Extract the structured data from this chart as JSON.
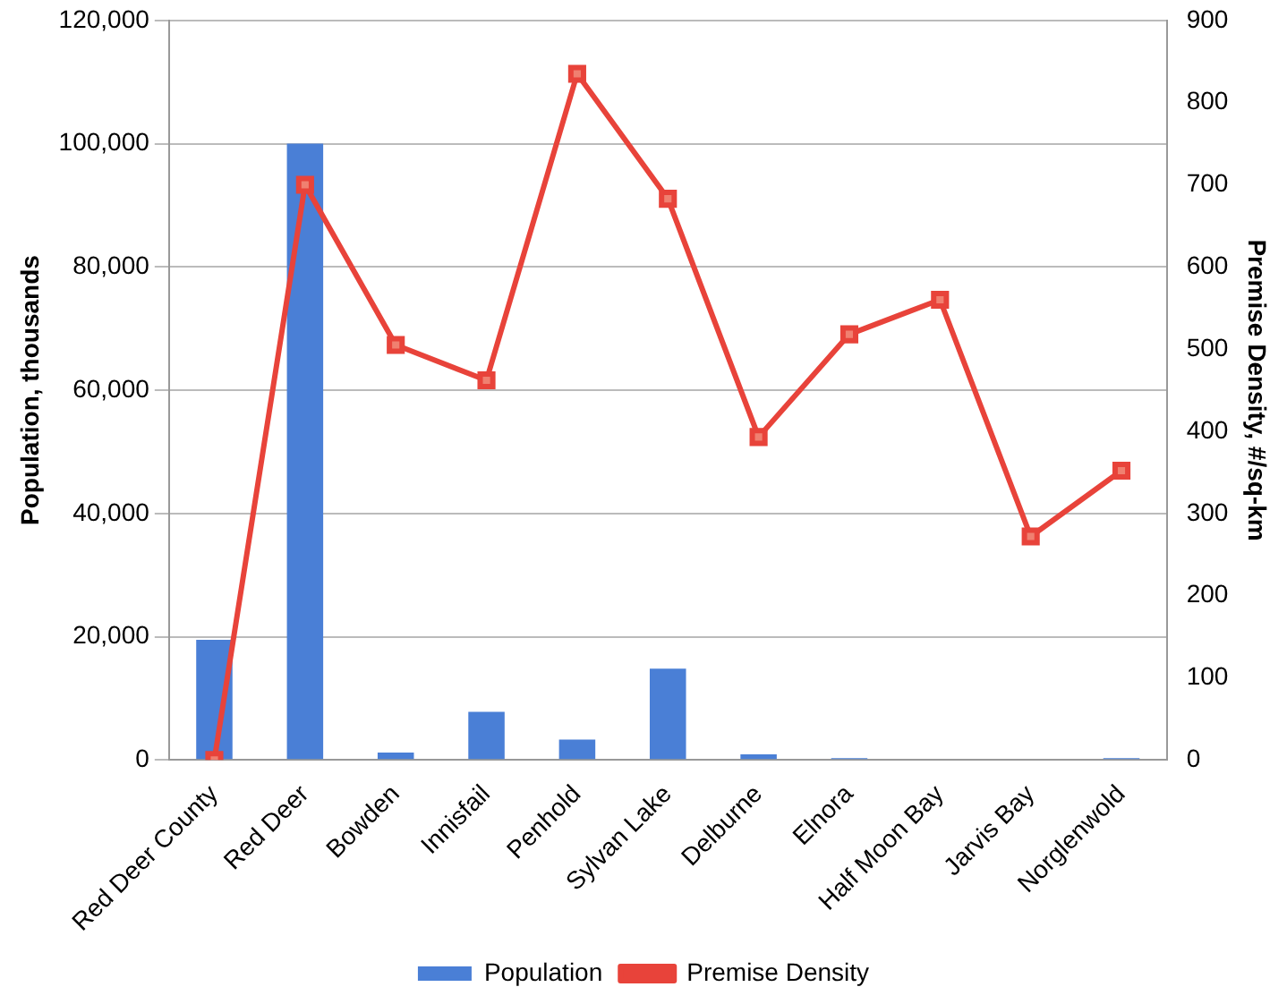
{
  "chart_data": {
    "type": "bar",
    "categories": [
      "Red Deer County",
      "Red Deer",
      "Bowden",
      "Innisfail",
      "Penhold",
      "Sylvan Lake",
      "Delburne",
      "Elnora",
      "Half Moon Bay",
      "Jarvis Bay",
      "Norglenwold"
    ],
    "series": [
      {
        "name": "Population",
        "color": "#4a7fd6",
        "values": [
          19500,
          100000,
          1200,
          7800,
          3300,
          14800,
          900,
          300,
          null,
          null,
          300
        ]
      },
      {
        "name": "Premise Density",
        "type": "line",
        "axis": "y2",
        "color": "#e8433a",
        "marker": "square",
        "values": [
          0,
          700,
          505,
          462,
          835,
          683,
          393,
          518,
          560,
          272,
          352
        ]
      }
    ],
    "ylabel": "Population, thousands",
    "y2label": "Premise Density, #/sq-km",
    "ylim": [
      0,
      120000
    ],
    "yticks": [
      {
        "value": 0,
        "label": "0"
      },
      {
        "value": 20000,
        "label": "20,000"
      },
      {
        "value": 40000,
        "label": "40,000"
      },
      {
        "value": 60000,
        "label": "60,000"
      },
      {
        "value": 80000,
        "label": "80,000"
      },
      {
        "value": 100000,
        "label": "100,000"
      },
      {
        "value": 120000,
        "label": "120,000"
      }
    ],
    "y2lim": [
      0,
      900
    ],
    "y2ticks": [
      0,
      100,
      200,
      300,
      400,
      500,
      600,
      700,
      800,
      900
    ],
    "grid": "y",
    "legend": "bottom"
  }
}
